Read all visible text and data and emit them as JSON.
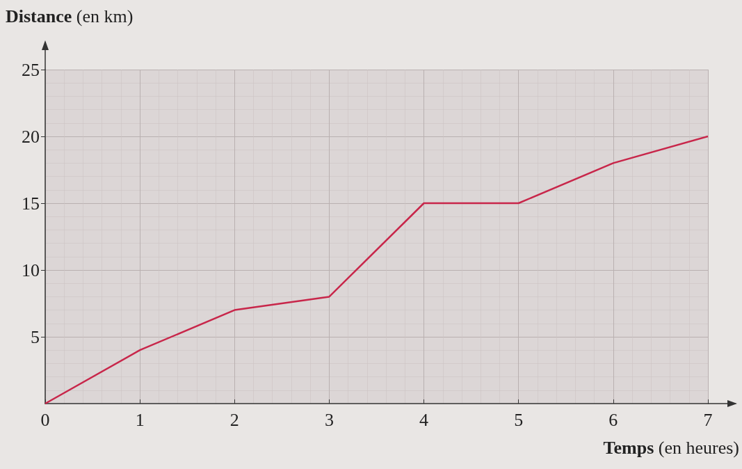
{
  "chart_data": {
    "type": "line",
    "xlabel": "Temps (en heures)",
    "ylabel": "Distance (en km)",
    "x": [
      0,
      1,
      2,
      3,
      4,
      5,
      6,
      7
    ],
    "series": [
      {
        "color": "#c8264a",
        "values": [
          0,
          4,
          7,
          8,
          15,
          15,
          18,
          20
        ]
      }
    ],
    "xlim": [
      0,
      7
    ],
    "xticks": [
      0,
      1,
      2,
      3,
      4,
      5,
      6,
      7
    ],
    "ylim": [
      0,
      25
    ],
    "yticks": [
      5,
      10,
      15,
      20,
      25
    ],
    "grid": true,
    "marker": "none",
    "line_style": "solid"
  }
}
